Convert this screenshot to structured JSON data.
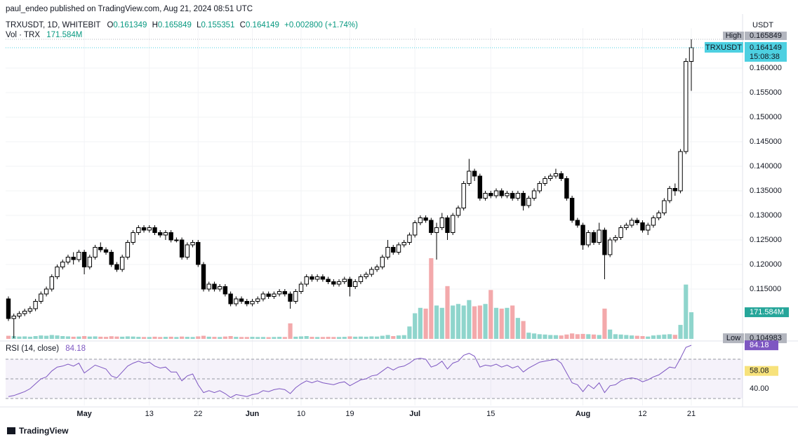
{
  "byline": "paul_endeo published on TradingView.com, Aug 21, 2024 08:51 UTC",
  "branding": "TradingView",
  "chart_data": {
    "type": "candlestick",
    "symbol": "TRXUSDT, 1D, WHITEBIT",
    "ohlc_letters": [
      "O",
      "H",
      "L",
      "C"
    ],
    "change": "+0.002800 (+1.74%)",
    "currency": "USDT",
    "ticker": "TRXUSDT",
    "countdown": "15:08:38",
    "high_marker": "High",
    "low_marker": "Low",
    "volume_title": "Vol · TRX",
    "volume_last_label": "171.584M",
    "rsi_title": "RSI (14, close)",
    "rsi_ma": 58.08,
    "up_color": "#ffffff",
    "down_color": "#000000",
    "volume_up_color": "#8fd5cc",
    "volume_down_color": "#f3a9ab",
    "rsi_color": "#7e57c2",
    "rsi_ma_color": "#f7e27b",
    "last_color": "#4dd0e1",
    "grid": true,
    "ylim": [
      0.104857,
      0.168143
    ],
    "yticks": [
      {
        "value": 0.115,
        "label": "0.115000"
      },
      {
        "value": 0.12,
        "label": "0.120000"
      },
      {
        "value": 0.125,
        "label": "0.125000"
      },
      {
        "value": 0.13,
        "label": "0.130000"
      },
      {
        "value": 0.135,
        "label": "0.135000"
      },
      {
        "value": 0.14,
        "label": "0.140000"
      },
      {
        "value": 0.145,
        "label": "0.145000"
      },
      {
        "value": 0.15,
        "label": "0.150000"
      },
      {
        "value": 0.155,
        "label": "0.155000"
      },
      {
        "value": 0.16,
        "label": "0.160000"
      }
    ],
    "volume_lim": [
      0,
      520
    ],
    "rsi_ylim": [
      22.86,
      87.14
    ],
    "rsi_levels": [
      70,
      50,
      30
    ],
    "rsi_yticks": [
      {
        "value": 40,
        "label": "40.00"
      }
    ],
    "xticks": [
      {
        "value": "2024-05-01",
        "label": "May"
      },
      {
        "value": "2024-05-13",
        "label": "13"
      },
      {
        "value": "2024-05-22",
        "label": "22"
      },
      {
        "value": "2024-06-01",
        "label": "Jun"
      },
      {
        "value": "2024-06-10",
        "label": "10"
      },
      {
        "value": "2024-06-19",
        "label": "19"
      },
      {
        "value": "2024-07-01",
        "label": "Jul"
      },
      {
        "value": "2024-07-15",
        "label": "15"
      },
      {
        "value": "2024-08-01",
        "label": "Aug"
      },
      {
        "value": "2024-08-12",
        "label": "12"
      },
      {
        "value": "2024-08-21",
        "label": "21"
      }
    ],
    "x": [
      "2024-04-17",
      "2024-04-18",
      "2024-04-19",
      "2024-04-20",
      "2024-04-21",
      "2024-04-22",
      "2024-04-23",
      "2024-04-24",
      "2024-04-25",
      "2024-04-26",
      "2024-04-27",
      "2024-04-28",
      "2024-04-29",
      "2024-04-30",
      "2024-05-01",
      "2024-05-02",
      "2024-05-03",
      "2024-05-04",
      "2024-05-05",
      "2024-05-06",
      "2024-05-07",
      "2024-05-08",
      "2024-05-09",
      "2024-05-10",
      "2024-05-11",
      "2024-05-12",
      "2024-05-13",
      "2024-05-14",
      "2024-05-15",
      "2024-05-16",
      "2024-05-17",
      "2024-05-18",
      "2024-05-19",
      "2024-05-20",
      "2024-05-21",
      "2024-05-22",
      "2024-05-23",
      "2024-05-24",
      "2024-05-25",
      "2024-05-26",
      "2024-05-27",
      "2024-05-28",
      "2024-05-29",
      "2024-05-30",
      "2024-05-31",
      "2024-06-01",
      "2024-06-02",
      "2024-06-03",
      "2024-06-04",
      "2024-06-05",
      "2024-06-06",
      "2024-06-07",
      "2024-06-08",
      "2024-06-09",
      "2024-06-10",
      "2024-06-11",
      "2024-06-12",
      "2024-06-13",
      "2024-06-14",
      "2024-06-15",
      "2024-06-16",
      "2024-06-17",
      "2024-06-18",
      "2024-06-19",
      "2024-06-20",
      "2024-06-21",
      "2024-06-22",
      "2024-06-23",
      "2024-06-24",
      "2024-06-25",
      "2024-06-26",
      "2024-06-27",
      "2024-06-28",
      "2024-06-29",
      "2024-06-30",
      "2024-07-01",
      "2024-07-02",
      "2024-07-03",
      "2024-07-04",
      "2024-07-05",
      "2024-07-06",
      "2024-07-07",
      "2024-07-08",
      "2024-07-09",
      "2024-07-10",
      "2024-07-11",
      "2024-07-12",
      "2024-07-13",
      "2024-07-14",
      "2024-07-15",
      "2024-07-16",
      "2024-07-17",
      "2024-07-18",
      "2024-07-19",
      "2024-07-20",
      "2024-07-21",
      "2024-07-22",
      "2024-07-23",
      "2024-07-24",
      "2024-07-25",
      "2024-07-26",
      "2024-07-27",
      "2024-07-28",
      "2024-07-29",
      "2024-07-30",
      "2024-07-31",
      "2024-08-01",
      "2024-08-02",
      "2024-08-03",
      "2024-08-04",
      "2024-08-05",
      "2024-08-06",
      "2024-08-07",
      "2024-08-08",
      "2024-08-09",
      "2024-08-10",
      "2024-08-11",
      "2024-08-12",
      "2024-08-13",
      "2024-08-14",
      "2024-08-15",
      "2024-08-16",
      "2024-08-17",
      "2024-08-18",
      "2024-08-19",
      "2024-08-20",
      "2024-08-21"
    ],
    "open": [
      0.113,
      0.109,
      0.1095,
      0.11,
      0.1105,
      0.111,
      0.1125,
      0.114,
      0.115,
      0.1175,
      0.1195,
      0.1205,
      0.1215,
      0.121,
      0.1225,
      0.1195,
      0.1215,
      0.1235,
      0.123,
      0.1225,
      0.12,
      0.119,
      0.1215,
      0.1245,
      0.1265,
      0.1275,
      0.127,
      0.1275,
      0.1265,
      0.126,
      0.1265,
      0.125,
      0.125,
      0.1215,
      0.124,
      0.1245,
      0.12,
      0.115,
      0.116,
      0.115,
      0.1155,
      0.114,
      0.112,
      0.113,
      0.1125,
      0.112,
      0.1125,
      0.113,
      0.114,
      0.1135,
      0.114,
      0.1145,
      0.114,
      0.1125,
      0.1145,
      0.116,
      0.1175,
      0.117,
      0.1175,
      0.117,
      0.1165,
      0.116,
      0.1165,
      0.117,
      0.1155,
      0.1165,
      0.1175,
      0.118,
      0.119,
      0.1195,
      0.1215,
      0.1235,
      0.1225,
      0.124,
      0.1245,
      0.126,
      0.1285,
      0.1295,
      0.129,
      0.1265,
      0.1275,
      0.1295,
      0.1265,
      0.13,
      0.1315,
      0.1365,
      0.139,
      0.138,
      0.1335,
      0.1345,
      0.134,
      0.135,
      0.134,
      0.1345,
      0.1335,
      0.1345,
      0.132,
      0.1335,
      0.135,
      0.1365,
      0.1375,
      0.138,
      0.1385,
      0.1375,
      0.1335,
      0.129,
      0.128,
      0.124,
      0.1265,
      0.1245,
      0.127,
      0.122,
      0.125,
      0.1255,
      0.1275,
      0.128,
      0.129,
      0.1285,
      0.127,
      0.128,
      0.1295,
      0.1305,
      0.133,
      0.1355,
      0.135,
      0.143,
      0.161349
    ],
    "high": [
      0.1135,
      0.11,
      0.1105,
      0.111,
      0.1115,
      0.113,
      0.1145,
      0.1155,
      0.118,
      0.12,
      0.121,
      0.122,
      0.1225,
      0.123,
      0.123,
      0.122,
      0.124,
      0.1245,
      0.1235,
      0.123,
      0.1205,
      0.122,
      0.125,
      0.127,
      0.128,
      0.128,
      0.128,
      0.128,
      0.127,
      0.127,
      0.127,
      0.1255,
      0.1255,
      0.1245,
      0.125,
      0.125,
      0.1205,
      0.1165,
      0.1165,
      0.116,
      0.116,
      0.1145,
      0.1135,
      0.1135,
      0.113,
      0.113,
      0.1135,
      0.1145,
      0.1145,
      0.1145,
      0.115,
      0.115,
      0.1145,
      0.115,
      0.1165,
      0.118,
      0.118,
      0.118,
      0.118,
      0.1175,
      0.117,
      0.117,
      0.1175,
      0.1175,
      0.117,
      0.118,
      0.1185,
      0.1195,
      0.12,
      0.122,
      0.125,
      0.124,
      0.1245,
      0.125,
      0.1265,
      0.129,
      0.13,
      0.13,
      0.1295,
      0.1285,
      0.1305,
      0.13,
      0.1305,
      0.132,
      0.137,
      0.1415,
      0.1395,
      0.1385,
      0.135,
      0.135,
      0.1355,
      0.1355,
      0.135,
      0.135,
      0.135,
      0.135,
      0.134,
      0.1355,
      0.137,
      0.138,
      0.1385,
      0.1395,
      0.139,
      0.138,
      0.134,
      0.1295,
      0.1285,
      0.127,
      0.127,
      0.1285,
      0.1275,
      0.1255,
      0.126,
      0.128,
      0.1285,
      0.1295,
      0.1295,
      0.129,
      0.1285,
      0.13,
      0.131,
      0.1335,
      0.136,
      0.1365,
      0.1435,
      0.162,
      0.165849
    ],
    "low": [
      0.1085,
      0.104983,
      0.109,
      0.1095,
      0.11,
      0.1105,
      0.112,
      0.1135,
      0.1145,
      0.117,
      0.119,
      0.12,
      0.12,
      0.1205,
      0.118,
      0.119,
      0.121,
      0.1225,
      0.122,
      0.1195,
      0.1185,
      0.1185,
      0.121,
      0.124,
      0.126,
      0.1265,
      0.1265,
      0.126,
      0.1255,
      0.125,
      0.1245,
      0.1245,
      0.121,
      0.121,
      0.1235,
      0.1195,
      0.1145,
      0.1145,
      0.1145,
      0.1145,
      0.1135,
      0.1115,
      0.1115,
      0.112,
      0.1115,
      0.1115,
      0.112,
      0.1125,
      0.113,
      0.113,
      0.1135,
      0.1135,
      0.111,
      0.112,
      0.114,
      0.1155,
      0.1165,
      0.1165,
      0.1165,
      0.116,
      0.1155,
      0.1155,
      0.116,
      0.1135,
      0.115,
      0.116,
      0.117,
      0.1175,
      0.1185,
      0.119,
      0.121,
      0.122,
      0.122,
      0.1235,
      0.124,
      0.1255,
      0.128,
      0.1285,
      0.126,
      0.121,
      0.127,
      0.125,
      0.126,
      0.1295,
      0.131,
      0.136,
      0.137,
      0.133,
      0.133,
      0.1335,
      0.1335,
      0.1335,
      0.1335,
      0.133,
      0.133,
      0.131,
      0.1315,
      0.133,
      0.1345,
      0.136,
      0.137,
      0.1375,
      0.137,
      0.133,
      0.1285,
      0.1275,
      0.123,
      0.1235,
      0.124,
      0.124,
      0.117,
      0.1215,
      0.1245,
      0.125,
      0.127,
      0.1275,
      0.128,
      0.1265,
      0.126,
      0.1275,
      0.129,
      0.13,
      0.1325,
      0.134,
      0.1345,
      0.1425,
      0.155351
    ],
    "close": [
      0.109,
      0.1095,
      0.11,
      0.1105,
      0.111,
      0.1125,
      0.114,
      0.115,
      0.1175,
      0.1195,
      0.1205,
      0.1215,
      0.121,
      0.1225,
      0.1195,
      0.1215,
      0.1235,
      0.123,
      0.1225,
      0.12,
      0.119,
      0.1215,
      0.1245,
      0.1265,
      0.1275,
      0.127,
      0.1275,
      0.1265,
      0.126,
      0.1265,
      0.125,
      0.125,
      0.1215,
      0.124,
      0.1245,
      0.12,
      0.115,
      0.116,
      0.115,
      0.1155,
      0.114,
      0.112,
      0.113,
      0.1125,
      0.112,
      0.1125,
      0.113,
      0.114,
      0.1135,
      0.114,
      0.1145,
      0.114,
      0.1125,
      0.1145,
      0.116,
      0.1175,
      0.117,
      0.1175,
      0.117,
      0.1165,
      0.116,
      0.1165,
      0.117,
      0.1155,
      0.1165,
      0.1175,
      0.118,
      0.119,
      0.1195,
      0.1215,
      0.1235,
      0.1225,
      0.124,
      0.1245,
      0.126,
      0.1285,
      0.1295,
      0.129,
      0.1265,
      0.1275,
      0.1295,
      0.1265,
      0.13,
      0.1315,
      0.1365,
      0.139,
      0.138,
      0.1335,
      0.1345,
      0.134,
      0.135,
      0.134,
      0.1345,
      0.1335,
      0.1345,
      0.132,
      0.1335,
      0.135,
      0.1365,
      0.1375,
      0.138,
      0.1385,
      0.1375,
      0.1335,
      0.129,
      0.128,
      0.124,
      0.1265,
      0.1245,
      0.127,
      0.122,
      0.125,
      0.1255,
      0.1275,
      0.128,
      0.129,
      0.1285,
      0.127,
      0.128,
      0.1295,
      0.1305,
      0.133,
      0.1355,
      0.135,
      0.143,
      0.161349,
      0.164149
    ],
    "volume": [
      20,
      18,
      15,
      16,
      14,
      18,
      22,
      20,
      25,
      22,
      18,
      16,
      14,
      15,
      18,
      15,
      16,
      14,
      13,
      17,
      15,
      14,
      16,
      15,
      13,
      12,
      12,
      14,
      12,
      13,
      14,
      12,
      15,
      13,
      12,
      16,
      20,
      14,
      13,
      12,
      15,
      18,
      13,
      12,
      12,
      13,
      12,
      12,
      11,
      12,
      13,
      12,
      100,
      14,
      16,
      18,
      13,
      12,
      12,
      13,
      12,
      12,
      13,
      16,
      14,
      15,
      14,
      16,
      15,
      20,
      25,
      18,
      22,
      24,
      80,
      165,
      200,
      195,
      520,
      215,
      200,
      340,
      215,
      225,
      215,
      250,
      210,
      215,
      225,
      315,
      200,
      195,
      200,
      215,
      135,
      115,
      40,
      35,
      30,
      28,
      25,
      24,
      22,
      28,
      35,
      30,
      32,
      30,
      28,
      25,
      195,
      60,
      30,
      28,
      25,
      22,
      20,
      18,
      15,
      22,
      25,
      28,
      30,
      26,
      90,
      350,
      171.584
    ],
    "rsi": [
      32,
      33,
      35,
      37,
      40,
      45,
      50,
      52,
      58,
      62,
      63,
      65,
      63,
      66,
      56,
      60,
      64,
      62,
      60,
      53,
      51,
      57,
      63,
      66,
      68,
      66,
      67,
      63,
      61,
      62,
      57,
      57,
      48,
      53,
      55,
      44,
      36,
      38,
      36,
      38,
      35,
      31,
      34,
      33,
      32,
      34,
      35,
      38,
      37,
      39,
      40,
      39,
      35,
      41,
      45,
      48,
      46,
      48,
      46,
      45,
      44,
      46,
      47,
      43,
      46,
      49,
      50,
      53,
      54,
      58,
      62,
      59,
      62,
      63,
      66,
      70,
      71,
      70,
      62,
      64,
      68,
      60,
      66,
      68,
      74,
      76,
      73,
      62,
      64,
      63,
      65,
      62,
      64,
      61,
      63,
      57,
      61,
      64,
      67,
      68,
      69,
      70,
      66,
      56,
      46,
      44,
      37,
      44,
      40,
      46,
      36,
      43,
      44,
      48,
      50,
      51,
      50,
      47,
      49,
      52,
      54,
      58,
      62,
      61,
      71,
      82,
      84.18
    ]
  }
}
